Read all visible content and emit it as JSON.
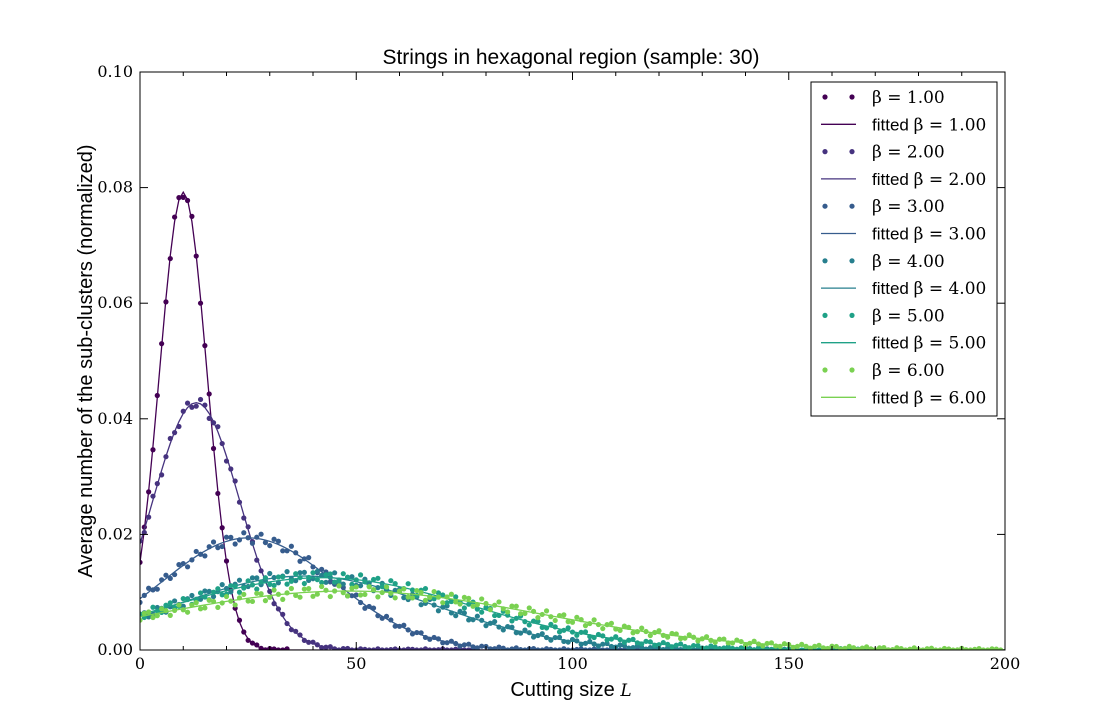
{
  "chart_data": {
    "type": "scatter",
    "title": "Strings in hexagonal region (sample: 30)",
    "xlabel": "Cutting size",
    "xlabel_symbol": "L",
    "ylabel": "Average number of the sub-clusters (normalized)",
    "xlim": [
      0,
      200
    ],
    "ylim": [
      0,
      0.1
    ],
    "xticks": [
      "0",
      "50",
      "100",
      "150",
      "200"
    ],
    "yticks": [
      "0.00",
      "0.02",
      "0.04",
      "0.06",
      "0.08",
      "0.10"
    ],
    "grid": false,
    "legend_position": "top-right",
    "series": [
      {
        "beta": "1.00",
        "color": "#440154",
        "scatter_label": "β = 1.00",
        "fit_label_prefix": "fitted ",
        "fit_label_math": "β = 1.00",
        "fit": {
          "A": 0.0792,
          "mu": 10,
          "sigma": 5.5
        },
        "x_max": 34
      },
      {
        "beta": "2.00",
        "color": "#46337f",
        "scatter_label": "β = 2.00",
        "fit_label_prefix": "fitted ",
        "fit_label_math": "β = 2.00",
        "fit": {
          "A": 0.0428,
          "mu": 13,
          "sigma": 10
        },
        "x_max": 78
      },
      {
        "beta": "3.00",
        "color": "#365c8d",
        "scatter_label": "β = 3.00",
        "fit_label_prefix": "fitted ",
        "fit_label_math": "β = 3.00",
        "fit": {
          "A": 0.0194,
          "mu": 25,
          "sigma": 20
        },
        "x_max": 125
      },
      {
        "beta": "4.00",
        "color": "#277f8e",
        "scatter_label": "β = 4.00",
        "fit_label_prefix": "fitted ",
        "fit_label_math": "β = 4.00",
        "fit": {
          "A": 0.0128,
          "mu": 38,
          "sigma": 30
        },
        "x_max": 150
      },
      {
        "beta": "5.00",
        "color": "#1fa187",
        "scatter_label": "β = 5.00",
        "fit_label_prefix": "fitted ",
        "fit_label_math": "β = 5.00",
        "fit": {
          "A": 0.0125,
          "mu": 42,
          "sigma": 35
        },
        "x_max": 168
      },
      {
        "beta": "6.00",
        "color": "#7ad151",
        "scatter_label": "β = 6.00",
        "fit_label_prefix": "fitted ",
        "fit_label_math": "β = 6.00",
        "fit": {
          "A": 0.0102,
          "mu": 48,
          "sigma": 45
        },
        "x_max": 199
      }
    ]
  }
}
